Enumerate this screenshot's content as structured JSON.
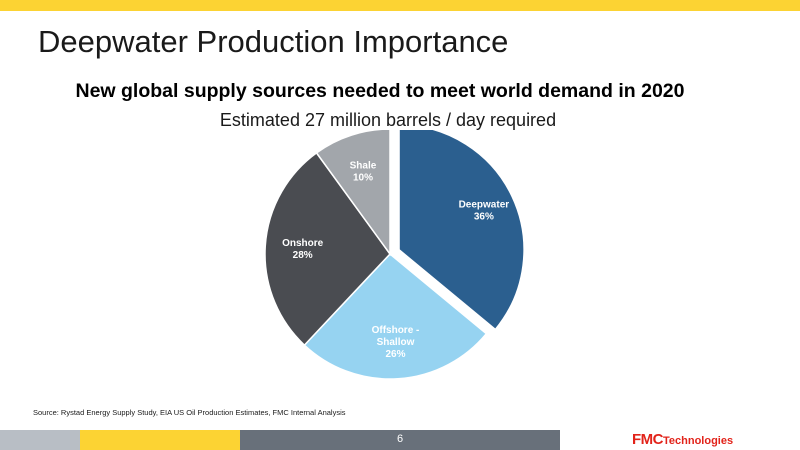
{
  "slide": {
    "title": "Deepwater Production Importance",
    "source": "Source: Rystad  Energy Supply Study, EIA US Oil Production Estimates,  FMC Internal Analysis",
    "page_number": "6",
    "logo_main": "FMC",
    "logo_sub": "Technologies"
  },
  "chart_data": {
    "type": "pie",
    "title": "New global supply sources needed to meet world demand in 2020",
    "subtitle": "Estimated 27 million barrels / day required",
    "categories": [
      "Deepwater",
      "Offshore - Shallow",
      "Onshore",
      "Shale"
    ],
    "values": [
      36,
      26,
      28,
      10
    ],
    "labels": [
      [
        "Deepwater",
        "36%"
      ],
      [
        "Offshore -",
        "Shallow",
        "26%"
      ],
      [
        "Onshore",
        "28%"
      ],
      [
        "Shale",
        "10%"
      ]
    ],
    "colors": [
      "#2b5f8f",
      "#96d3f1",
      "#4a4c51",
      "#a2a6ab"
    ],
    "exploded": "Deepwater",
    "legend": "none"
  },
  "colors": {
    "accent_yellow": "#fcd333",
    "footer_gray": "#b8bec5",
    "footer_dark": "#68707a",
    "logo_red": "#e2231a"
  }
}
